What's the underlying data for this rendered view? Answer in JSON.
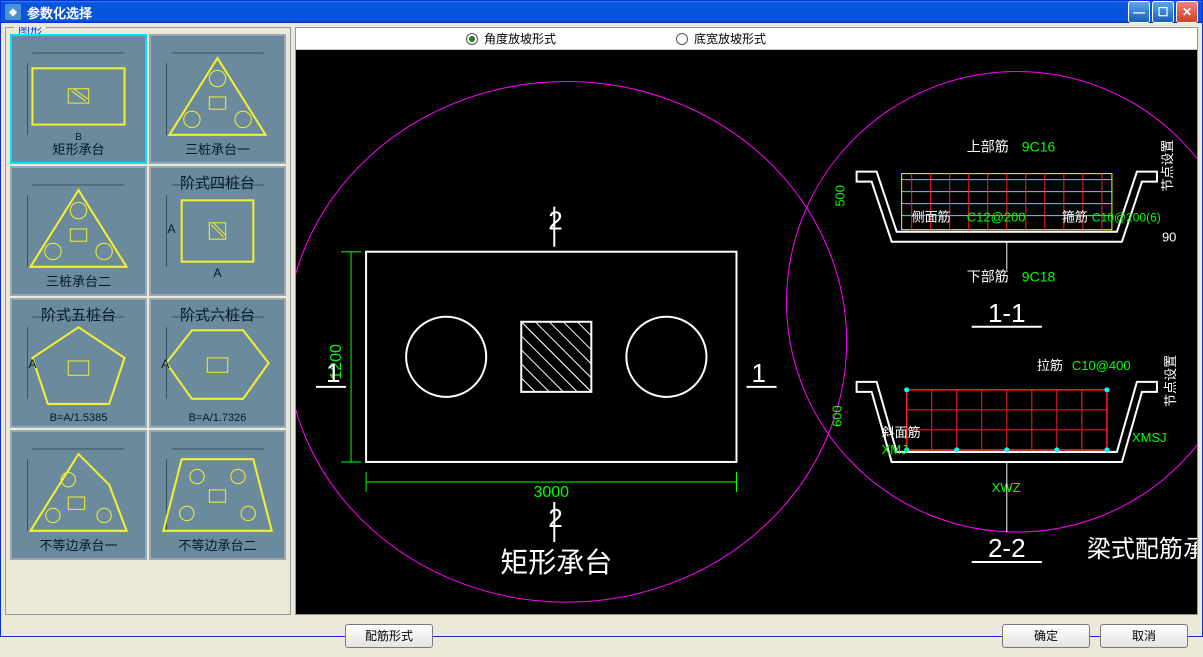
{
  "window": {
    "title": "参数化选择"
  },
  "group_label": "图形",
  "radios": {
    "angle": {
      "label": "角度放坡形式",
      "checked": true
    },
    "width": {
      "label": "底宽放坡形式",
      "checked": false
    }
  },
  "thumbnails": [
    {
      "key": "rect",
      "label": "矩形承台",
      "label_pos": "bottom",
      "selected": true,
      "shape": "rect"
    },
    {
      "key": "tri1",
      "label": "三桩承台一",
      "label_pos": "bottom",
      "selected": false,
      "shape": "tri"
    },
    {
      "key": "tri2",
      "label": "三桩承台二",
      "label_pos": "bottom",
      "selected": false,
      "shape": "tri"
    },
    {
      "key": "step4",
      "label": "阶式四桩台",
      "label_pos": "top",
      "selected": false,
      "shape": "sqA"
    },
    {
      "key": "step5",
      "label": "阶式五桩台",
      "label_pos": "top",
      "selected": false,
      "shape": "pent",
      "sub": "B=A/1.5385"
    },
    {
      "key": "step6",
      "label": "阶式六桩台",
      "label_pos": "top",
      "selected": false,
      "shape": "hex",
      "sub": "B=A/1.7326"
    },
    {
      "key": "uneq1",
      "label": "不等边承台一",
      "label_pos": "bottom",
      "selected": false,
      "shape": "trapL"
    },
    {
      "key": "uneq2",
      "label": "不等边承台二",
      "label_pos": "bottom",
      "selected": false,
      "shape": "trapR"
    }
  ],
  "buttons": {
    "rebar_form": "配筋形式",
    "ok": "确定",
    "cancel": "取消"
  },
  "preview": {
    "plan": {
      "title": "矩形承台",
      "width_label": "3000",
      "height_label": "1200",
      "section_mark_h": "1",
      "section_mark_v": "2"
    },
    "sec1": {
      "title": "1-1",
      "top_bar_label": "上部筋",
      "top_bar_val": "9C16",
      "side_bar_label": "侧面筋",
      "side_bar_val": "C12@200",
      "stirrup_label": "箍筋",
      "stirrup_val": "C10@200(6)",
      "bottom_bar_label": "下部筋",
      "bottom_bar_val": "9C18",
      "h_label": "500",
      "angle_label": "90",
      "node_label": "节点设置"
    },
    "sec2": {
      "title": "2-2",
      "overall_title": "梁式配筋承台",
      "tie_label": "拉筋",
      "tie_val": "C10@400",
      "xmj": "XMJ",
      "xmsj": "XMSJ",
      "xwz": "XWZ",
      "slope_label": "斜面筋",
      "h_label": "600",
      "node_label": "节点设置"
    },
    "colors": {
      "outline": "#ffffff",
      "dim": "#00ff00",
      "magenta": "#ff00ff",
      "cyan": "#00ffff",
      "red": "#ff2020",
      "yellow": "#ffff00",
      "green": "#00ff00"
    }
  }
}
